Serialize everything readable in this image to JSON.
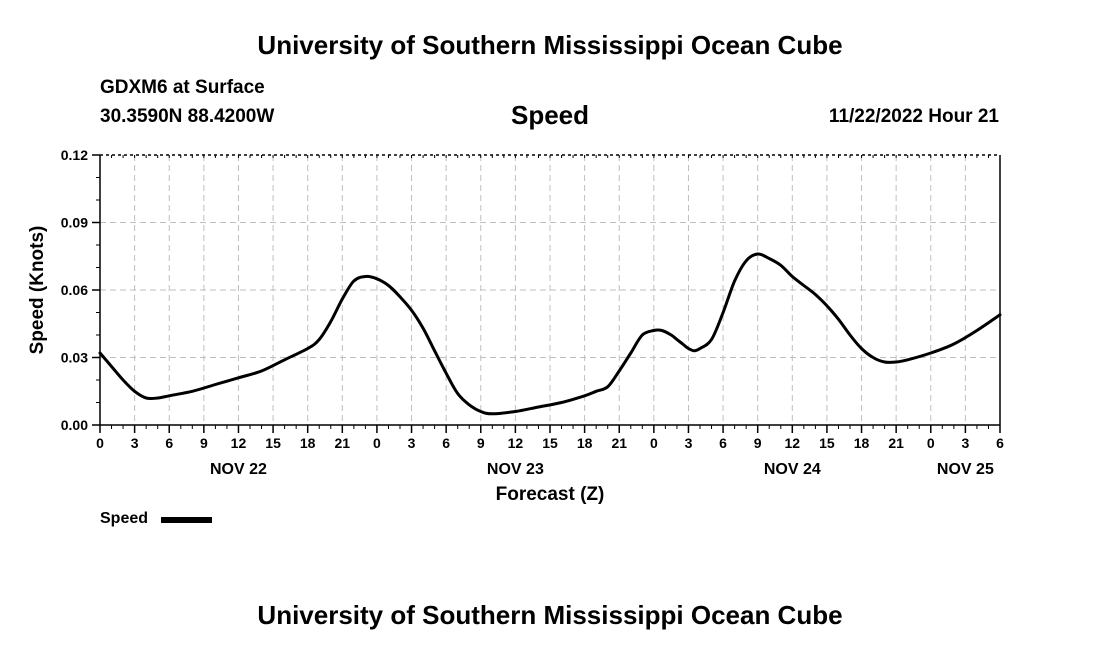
{
  "page": {
    "title_top": "University of Southern Mississippi Ocean Cube",
    "title_bottom": "University of Southern Mississippi Ocean Cube",
    "station": "GDXM6 at Surface",
    "coords": "30.3590N  88.4200W",
    "timestamp": "11/22/2022 Hour 21"
  },
  "chart_data": {
    "type": "line",
    "title": "Speed",
    "xlabel": "Forecast (Z)",
    "ylabel": "Speed (Knots)",
    "units": "hours since NOV 22 00Z",
    "xlim": [
      0,
      78
    ],
    "ylim": [
      0,
      0.12
    ],
    "yticks": [
      0,
      0.03,
      0.06,
      0.09,
      0.12
    ],
    "ytick_labels": [
      "0.00",
      "0.03",
      "0.06",
      "0.09",
      "0.12"
    ],
    "xticks": [
      0,
      3,
      6,
      9,
      12,
      15,
      18,
      21,
      24,
      27,
      30,
      33,
      36,
      39,
      42,
      45,
      48,
      51,
      54,
      57,
      60,
      63,
      66,
      69,
      72,
      75,
      78
    ],
    "xtick_labels": [
      "0",
      "3",
      "6",
      "9",
      "12",
      "15",
      "18",
      "21",
      "0",
      "3",
      "6",
      "9",
      "12",
      "15",
      "18",
      "21",
      "0",
      "3",
      "6",
      "9",
      "12",
      "15",
      "18",
      "21",
      "0",
      "3",
      "6"
    ],
    "day_labels": [
      {
        "label": "NOV 22",
        "x": 12
      },
      {
        "label": "NOV 23",
        "x": 36
      },
      {
        "label": "NOV 24",
        "x": 60
      },
      {
        "label": "NOV 25",
        "x": 75
      }
    ],
    "grid": true,
    "legend": "bottom-left",
    "series": [
      {
        "name": "Speed",
        "x": [
          0,
          1,
          2,
          3,
          4,
          5,
          6,
          8,
          10,
          12,
          14,
          16,
          18,
          19,
          20,
          21,
          22,
          23,
          24,
          25,
          26,
          27,
          28,
          29,
          30,
          31,
          32,
          33,
          34,
          36,
          38,
          40,
          42,
          43,
          44,
          45,
          46,
          47,
          48,
          48.7,
          49.5,
          50,
          50.5,
          51,
          51.5,
          52,
          53,
          54,
          55,
          56,
          57,
          58,
          59,
          60,
          61,
          62,
          63,
          64,
          65,
          66,
          67,
          68,
          69,
          70,
          72,
          74,
          76,
          78
        ],
        "values": [
          0.032,
          0.026,
          0.02,
          0.015,
          0.012,
          0.012,
          0.013,
          0.015,
          0.018,
          0.021,
          0.024,
          0.029,
          0.034,
          0.038,
          0.046,
          0.056,
          0.064,
          0.066,
          0.065,
          0.062,
          0.057,
          0.051,
          0.043,
          0.033,
          0.023,
          0.014,
          0.009,
          0.006,
          0.005,
          0.006,
          0.008,
          0.01,
          0.013,
          0.015,
          0.017,
          0.024,
          0.032,
          0.04,
          0.042,
          0.042,
          0.04,
          0.038,
          0.036,
          0.034,
          0.033,
          0.034,
          0.038,
          0.05,
          0.064,
          0.073,
          0.076,
          0.074,
          0.071,
          0.066,
          0.062,
          0.058,
          0.053,
          0.047,
          0.04,
          0.034,
          0.03,
          0.028,
          0.028,
          0.029,
          0.032,
          0.036,
          0.042,
          0.049
        ]
      }
    ]
  }
}
